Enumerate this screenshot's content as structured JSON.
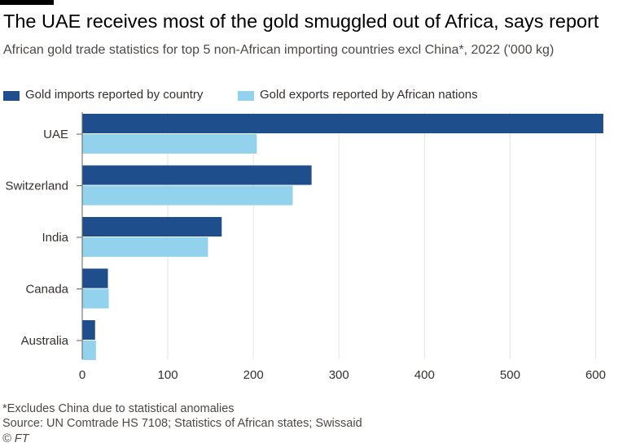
{
  "colors": {
    "imports": "#1e4f8c",
    "exports": "#93d2ec",
    "grid": "#e6e3e1",
    "axis": "#66605c",
    "text": "#33302e"
  },
  "chart_data": {
    "type": "bar",
    "orientation": "horizontal",
    "title": "The UAE receives most of the gold smuggled out of Africa, says report",
    "subtitle": "African gold trade statistics for top 5 non-African importing countries excl China*, 2022 ('000 kg)",
    "categories": [
      "UAE",
      "Switzerland",
      "India",
      "Canada",
      "Australia"
    ],
    "series": [
      {
        "name": "Gold imports reported by country",
        "color_key": "imports",
        "values": [
          609,
          268,
          163,
          30,
          15
        ]
      },
      {
        "name": "Gold exports reported by African nations",
        "color_key": "exports",
        "values": [
          204,
          246,
          147,
          31,
          16
        ]
      }
    ],
    "xlim": [
      0,
      610
    ],
    "xticks": [
      0,
      100,
      200,
      300,
      400,
      500,
      600
    ],
    "xlabel": "",
    "ylabel": "",
    "grid": true,
    "legend_position": "top-left"
  },
  "footnotes": {
    "note": "*Excludes China due to statistical anomalies",
    "source": "Source: UN Comtrade HS 7108; Statistics of African states; Swissaid",
    "credit": "© FT"
  }
}
